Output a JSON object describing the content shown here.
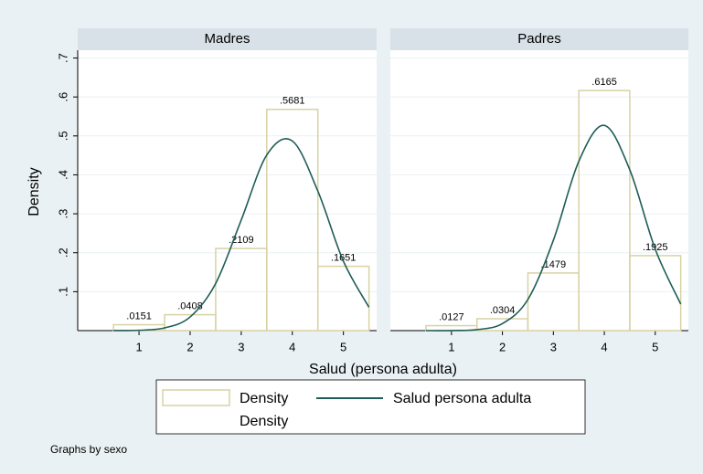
{
  "chart_data": [
    {
      "type": "histogram",
      "title": "Madres",
      "bins": [
        0.5,
        1.5,
        2.5,
        3.5,
        4.5,
        5.5
      ],
      "values": [
        0.0151,
        0.0408,
        0.2109,
        0.5681,
        0.1651
      ],
      "value_labels": [
        ".0151",
        ".0408",
        ".2109",
        ".5681",
        ".1651"
      ],
      "color": "#d8d2a4",
      "curve": {
        "x": [
          0.5,
          1,
          1.5,
          2,
          2.5,
          3,
          3.5,
          4,
          4.5,
          5,
          5.5
        ],
        "values": [
          0.0001,
          0.0009,
          0.007,
          0.035,
          0.121,
          0.284,
          0.451,
          0.487,
          0.358,
          0.178,
          0.06
        ],
        "color": "#1e5d57"
      },
      "xlim": [
        -0.2,
        5.65
      ],
      "xticks": [
        1,
        2,
        3,
        4,
        5
      ],
      "ylim": [
        0,
        0.72
      ],
      "yticks": [
        {
          "value": 0.1,
          "label": ".1"
        },
        {
          "value": 0.2,
          "label": ".2"
        },
        {
          "value": 0.3,
          "label": ".3"
        },
        {
          "value": 0.4,
          "label": ".4"
        },
        {
          "value": 0.5,
          "label": ".5"
        },
        {
          "value": 0.6,
          "label": ".6"
        },
        {
          "value": 0.7,
          "label": ".7"
        }
      ],
      "grid": true
    },
    {
      "type": "histogram",
      "title": "Padres",
      "bins": [
        0.5,
        1.5,
        2.5,
        3.5,
        4.5,
        5.5
      ],
      "values": [
        0.0127,
        0.0304,
        0.1479,
        0.6165,
        0.1925
      ],
      "value_labels": [
        ".0127",
        ".0304",
        ".1479",
        ".6165",
        ".1925"
      ],
      "color": "#d8d2a4",
      "curve": {
        "x": [
          0.5,
          1,
          1.5,
          2,
          2.5,
          3,
          3.5,
          4,
          4.5,
          5,
          5.5
        ],
        "values": [
          0.0,
          0.0002,
          0.0026,
          0.018,
          0.08,
          0.232,
          0.435,
          0.527,
          0.413,
          0.209,
          0.068
        ],
        "color": "#1e5d57"
      },
      "xlim": [
        -0.2,
        5.65
      ],
      "xticks": [
        1,
        2,
        3,
        4,
        5
      ],
      "ylim": [
        0,
        0.72
      ],
      "yticks": [
        {
          "value": 0.1,
          "label": ".1"
        },
        {
          "value": 0.2,
          "label": ".2"
        },
        {
          "value": 0.3,
          "label": ".3"
        },
        {
          "value": 0.4,
          "label": ".4"
        },
        {
          "value": 0.5,
          "label": ".5"
        },
        {
          "value": 0.6,
          "label": ".6"
        },
        {
          "value": 0.7,
          "label": ".7"
        }
      ],
      "grid": true
    }
  ],
  "xlabel": "Salud (persona adulta)",
  "ylabel": "Density",
  "legend": {
    "bars": "Density",
    "bars_sub": "Density",
    "line": "Salud persona adulta"
  },
  "note": "Graphs by sexo"
}
